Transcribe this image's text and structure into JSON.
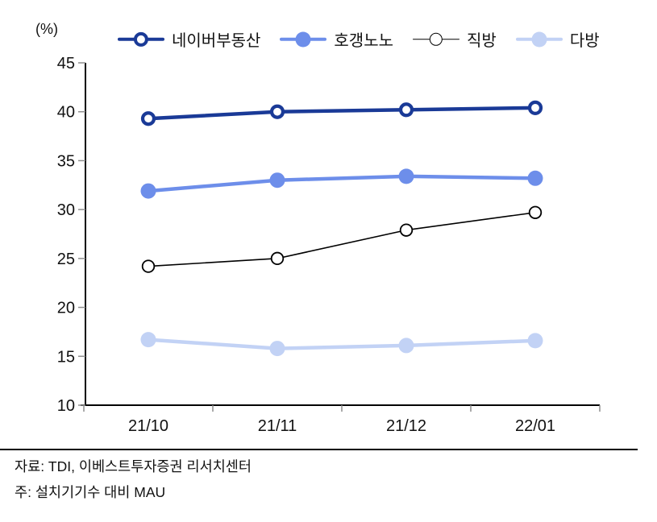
{
  "chart_data": {
    "type": "line",
    "title": "",
    "xlabel": "",
    "ylabel": "(%)",
    "categories": [
      "21/10",
      "21/11",
      "21/12",
      "22/01"
    ],
    "ylim": [
      10,
      45
    ],
    "ytick_step": 5,
    "grid": false,
    "legend_position": "top",
    "series": [
      {
        "name": "네이버부동산",
        "values": [
          39.3,
          40.0,
          40.2,
          40.4
        ],
        "color": "#1A3A97",
        "line_width": 4.5,
        "marker": "open-circle",
        "marker_radius": 7,
        "marker_stroke_width": 4.2
      },
      {
        "name": "호갱노노",
        "values": [
          31.9,
          33.0,
          33.4,
          33.2
        ],
        "color": "#6D8EEA",
        "line_width": 4.5,
        "marker": "filled-circle",
        "marker_radius": 9.5,
        "marker_stroke_width": 0
      },
      {
        "name": "직방",
        "values": [
          24.2,
          25.0,
          27.9,
          29.7
        ],
        "color": "#000000",
        "line_width": 1.6,
        "marker": "open-circle",
        "marker_radius": 7.3,
        "marker_stroke_width": 1.8
      },
      {
        "name": "다방",
        "values": [
          16.7,
          15.8,
          16.1,
          16.6
        ],
        "color": "#C2D2F5",
        "line_width": 4.5,
        "marker": "filled-circle",
        "marker_radius": 9.5,
        "marker_stroke_width": 0
      }
    ]
  },
  "footer": {
    "source": "자료: TDI, 이베스트투자증권 리서치센터",
    "note": "주: 설치기기수 대비 MAU"
  }
}
